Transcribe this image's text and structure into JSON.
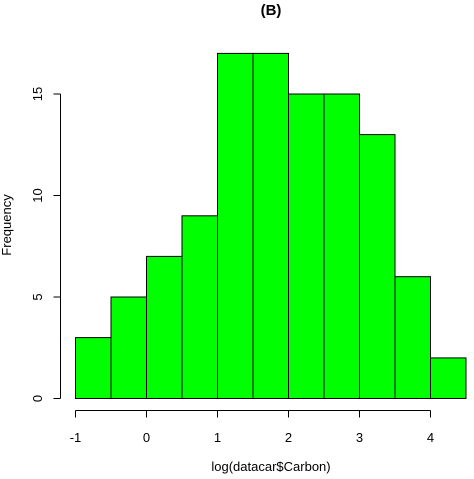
{
  "chart_data": {
    "type": "bar",
    "subtype": "histogram",
    "title": "(B)",
    "xlabel": "log(datacar$Carbon)",
    "ylabel": "Frequency",
    "bin_edges": [
      -1,
      -0.5,
      0,
      0.5,
      1,
      1.5,
      2,
      2.5,
      3,
      3.5,
      4,
      4.5
    ],
    "values": [
      3,
      5,
      7,
      9,
      17,
      17,
      15,
      15,
      13,
      6,
      2
    ],
    "xlim": [
      -1,
      4.5
    ],
    "ylim": [
      0,
      17
    ],
    "x_ticks": [
      -1,
      0,
      1,
      2,
      3,
      4
    ],
    "y_ticks": [
      0,
      5,
      10,
      15
    ],
    "bar_color": "#00ff00",
    "edge_color": "#000000",
    "grid": false,
    "legend": "none"
  }
}
